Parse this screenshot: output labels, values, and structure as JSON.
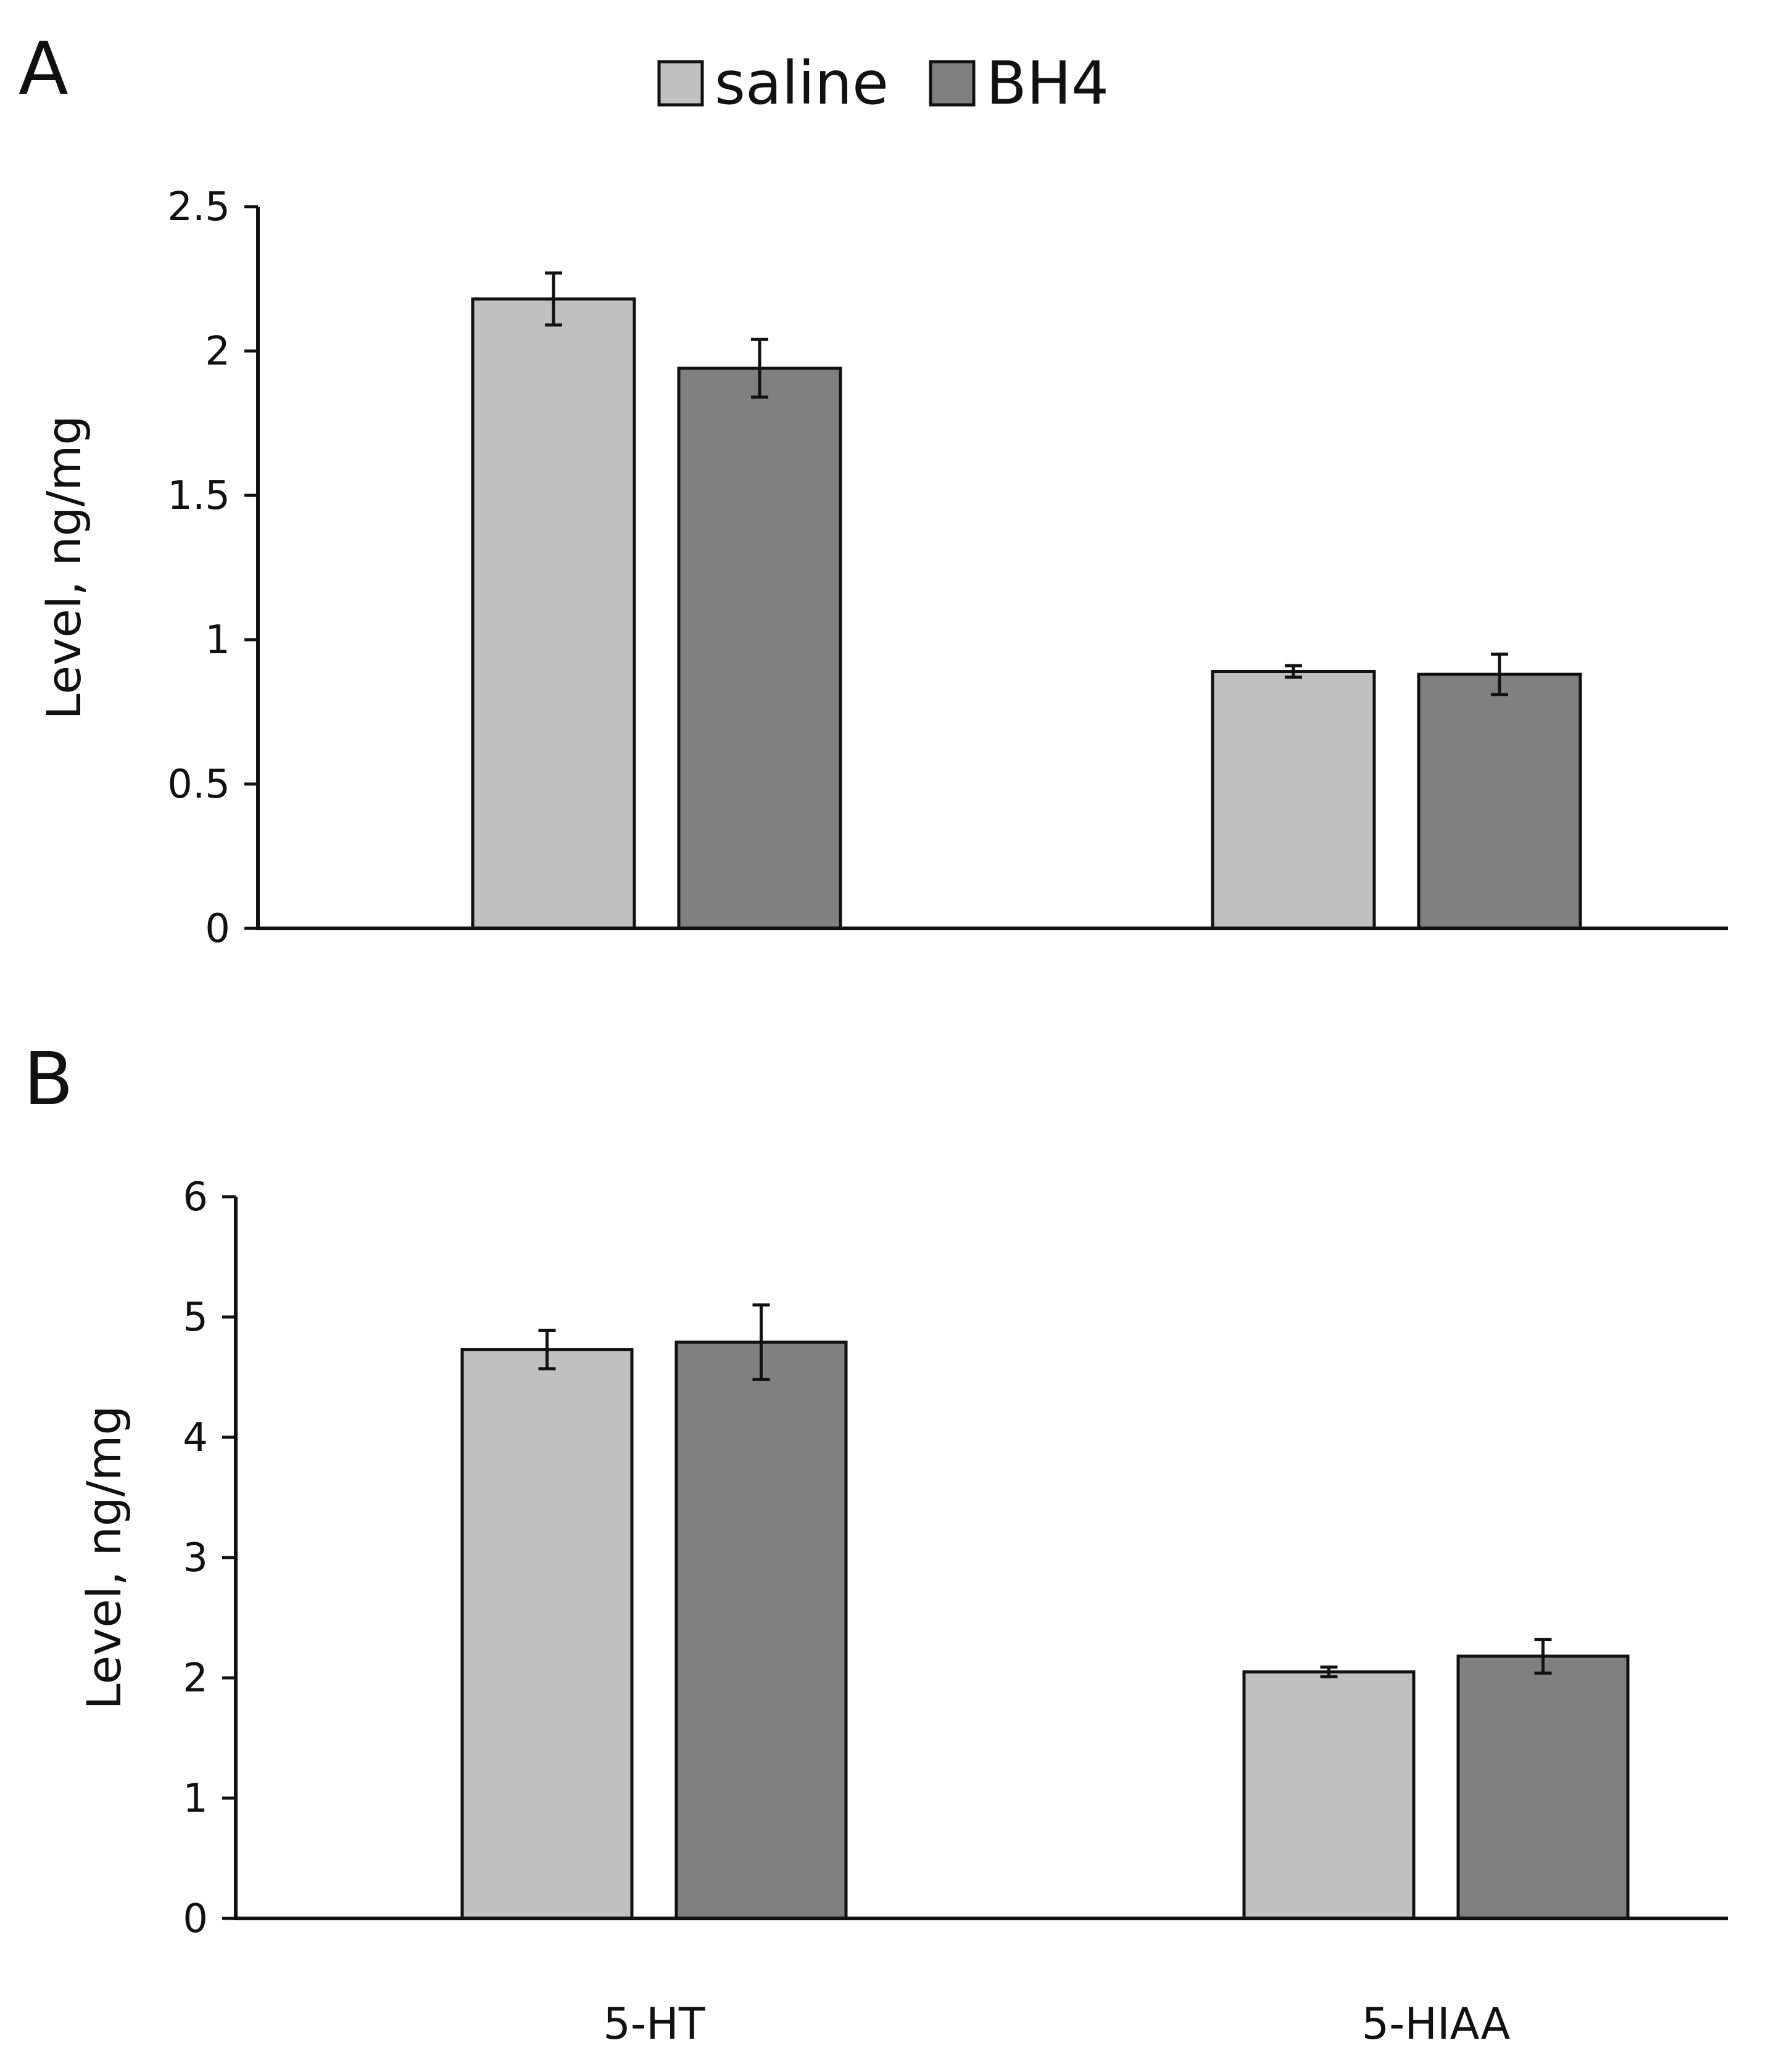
{
  "figure": {
    "legend": [
      {
        "label": "saline",
        "color": "#c0c0c0"
      },
      {
        "label": "BH4",
        "color": "#808080"
      }
    ],
    "category_labels": [
      "5-HT",
      "5-HIAA"
    ]
  },
  "colors": {
    "saline": "#c0c0c0",
    "BH4": "#808080",
    "outline": "#111111"
  },
  "chart_data": [
    {
      "type": "bar",
      "panel": "A",
      "categories": [
        "5-HT",
        "5-HIAA"
      ],
      "series": [
        {
          "name": "saline",
          "values": [
            2.18,
            0.89
          ],
          "errors": [
            0.09,
            0.02
          ]
        },
        {
          "name": "BH4",
          "values": [
            1.94,
            0.88
          ],
          "errors": [
            0.1,
            0.07
          ]
        }
      ],
      "ylabel": "Level, ng/mg",
      "xlabel": "",
      "ylim": [
        0,
        2.5
      ],
      "yticks": [
        "0",
        "0.5",
        "1",
        "1.5",
        "2",
        "2.5"
      ],
      "show_category_labels": false,
      "legend_position": "top"
    },
    {
      "type": "bar",
      "panel": "B",
      "categories": [
        "5-HT",
        "5-HIAA"
      ],
      "series": [
        {
          "name": "saline",
          "values": [
            4.73,
            2.05
          ],
          "errors": [
            0.16,
            0.04
          ]
        },
        {
          "name": "BH4",
          "values": [
            4.79,
            2.18
          ],
          "errors": [
            0.31,
            0.14
          ]
        }
      ],
      "ylabel": "Level, ng/mg",
      "xlabel": "",
      "ylim": [
        0,
        6
      ],
      "yticks": [
        "0",
        "1",
        "2",
        "3",
        "4",
        "5",
        "6"
      ],
      "show_category_labels": true,
      "legend_position": "top"
    }
  ]
}
